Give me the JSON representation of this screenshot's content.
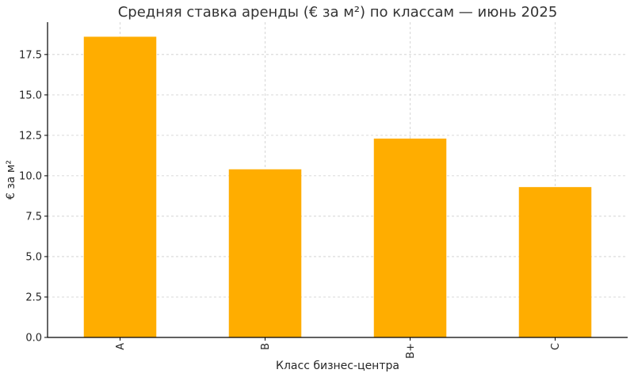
{
  "chart_data": {
    "type": "bar",
    "title": "Средняя ставка аренды (€ за м²) по классам — июнь 2025",
    "xlabel": "Класс бизнес-центра",
    "ylabel": "€ за м²",
    "categories": [
      "A",
      "B",
      "B+",
      "C"
    ],
    "values": [
      18.6,
      10.4,
      12.3,
      9.3
    ],
    "ylim": [
      0,
      19.5
    ],
    "yticks": [
      0.0,
      2.5,
      5.0,
      7.5,
      10.0,
      12.5,
      15.0,
      17.5
    ],
    "ytick_labels": [
      "0.0",
      "2.5",
      "5.0",
      "7.5",
      "10.0",
      "12.5",
      "15.0",
      "17.5"
    ],
    "grid": true,
    "legend": "none",
    "bar_color": "#FFAD00"
  }
}
